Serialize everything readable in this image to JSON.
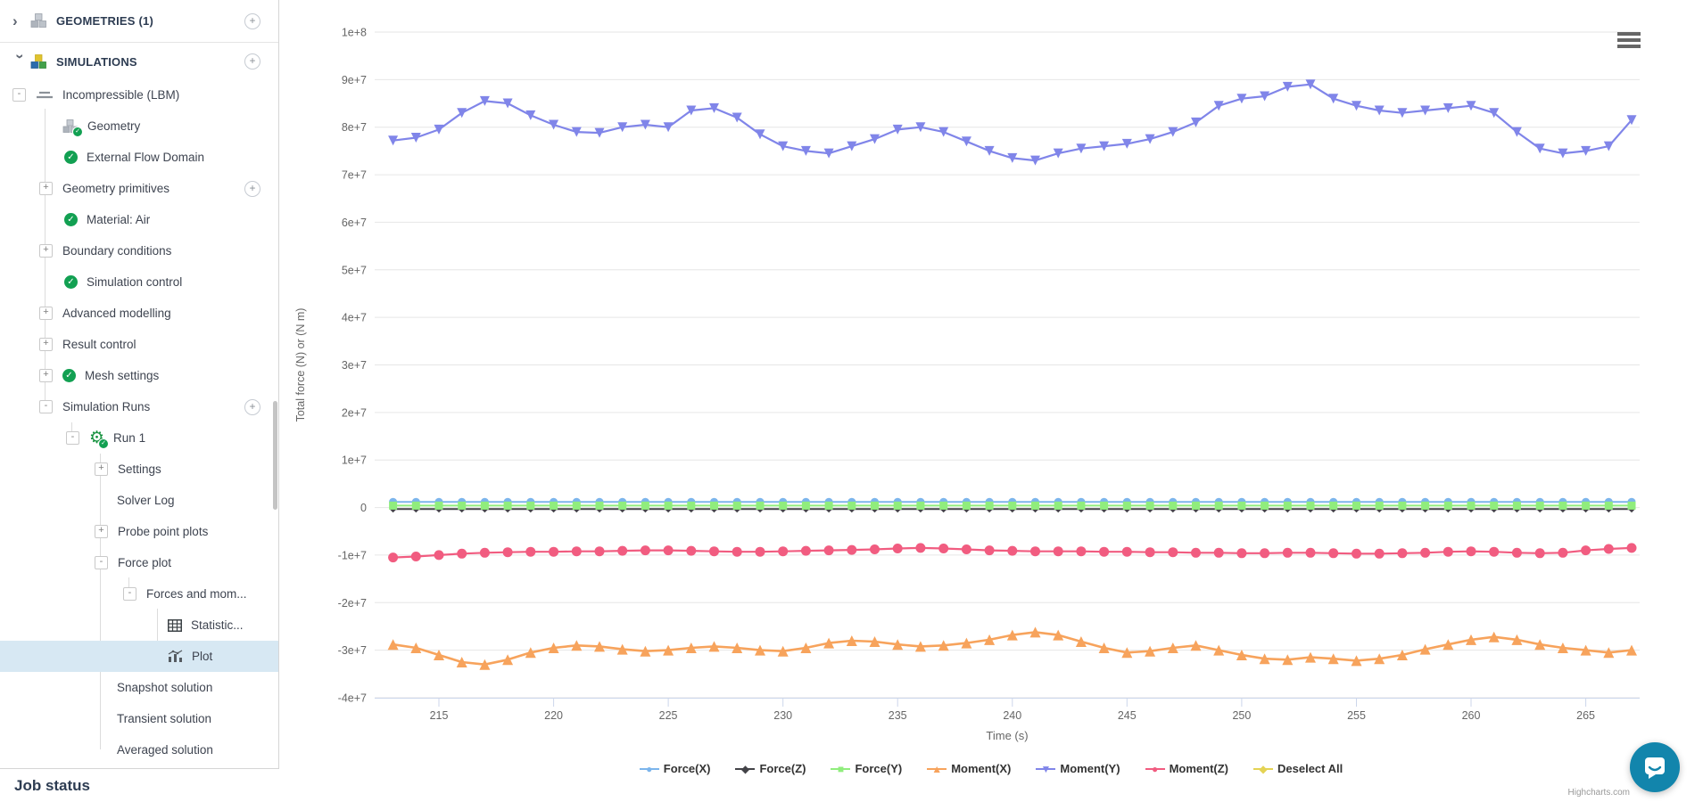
{
  "icons": {
    "plus_glyph": "+",
    "check_glyph": "✓",
    "chevron_glyph": "›",
    "gear_glyph": "⚙"
  },
  "sidebar": {
    "sections": {
      "geometries": {
        "label": "GEOMETRIES (1)"
      },
      "simulations": {
        "label": "SIMULATIONS"
      }
    },
    "items": [
      {
        "label": "Incompressible (LBM)",
        "exp": "-"
      },
      {
        "label": "Geometry"
      },
      {
        "label": "External Flow Domain"
      },
      {
        "label": "Geometry primitives",
        "exp": "+"
      },
      {
        "label": "Material: Air"
      },
      {
        "label": "Boundary conditions",
        "exp": "+"
      },
      {
        "label": "Simulation control"
      },
      {
        "label": "Advanced modelling",
        "exp": "+"
      },
      {
        "label": "Result control",
        "exp": "+"
      },
      {
        "label": "Mesh settings",
        "exp": "+"
      },
      {
        "label": "Simulation Runs",
        "exp": "-"
      },
      {
        "label": "Run 1",
        "exp": "-"
      },
      {
        "label": "Settings",
        "exp": "+"
      },
      {
        "label": "Solver Log"
      },
      {
        "label": "Probe point plots",
        "exp": "+"
      },
      {
        "label": "Force plot",
        "exp": "-"
      },
      {
        "label": "Forces and mom...",
        "exp": "-"
      },
      {
        "label": "Statistic..."
      },
      {
        "label": "Plot"
      },
      {
        "label": "Snapshot solution"
      },
      {
        "label": "Transient solution"
      },
      {
        "label": "Averaged solution"
      }
    ],
    "job_status_label": "Job status"
  },
  "chart_data": {
    "type": "line",
    "title": "",
    "xlabel": "Time (s)",
    "ylabel": "Total force (N) or (N m)",
    "grid": "horizontal",
    "legend_position": "bottom",
    "xlim": [
      212.2,
      267.35
    ],
    "ylim": [
      -40000000.0,
      100000000.0
    ],
    "x_ticks": [
      215,
      220,
      225,
      230,
      235,
      240,
      245,
      250,
      255,
      260,
      265
    ],
    "y_ticks": {
      "values": [
        100000000.0,
        90000000.0,
        80000000.0,
        70000000.0,
        60000000.0,
        50000000.0,
        40000000.0,
        30000000.0,
        20000000.0,
        10000000.0,
        0,
        -10000000.0,
        -20000000.0,
        -30000000.0,
        -40000000.0
      ],
      "labels": [
        "1e+8",
        "9e+7",
        "8e+7",
        "7e+7",
        "6e+7",
        "5e+7",
        "4e+7",
        "3e+7",
        "2e+7",
        "1e+7",
        "0",
        "-1e+7",
        "-2e+7",
        "-3e+7",
        "-4e+7"
      ]
    },
    "x": [
      213,
      214,
      215,
      216,
      217,
      218,
      219,
      220,
      221,
      222,
      223,
      224,
      225,
      226,
      227,
      228,
      229,
      230,
      231,
      232,
      233,
      234,
      235,
      236,
      237,
      238,
      239,
      240,
      241,
      242,
      243,
      244,
      245,
      246,
      247,
      248,
      249,
      250,
      251,
      252,
      253,
      254,
      255,
      256,
      257,
      258,
      259,
      260,
      261,
      262,
      263,
      264,
      265,
      266,
      267
    ],
    "series": [
      {
        "name": "Moment(Y)",
        "color": "#8085e9",
        "marker": "triangle-down",
        "radius": 5.5,
        "lw": 2.2,
        "values": [
          77200000.0,
          77800000.0,
          79500000.0,
          83000000.0,
          85500000.0,
          85000000.0,
          82500000.0,
          80500000.0,
          79000000.0,
          78800000.0,
          80000000.0,
          80500000.0,
          80000000.0,
          83500000.0,
          84000000.0,
          82000000.0,
          78500000.0,
          76000000.0,
          75000000.0,
          74500000.0,
          76000000.0,
          77500000.0,
          79500000.0,
          80000000.0,
          79000000.0,
          77000000.0,
          75000000.0,
          73500000.0,
          73000000.0,
          74500000.0,
          75500000.0,
          76000000.0,
          76500000.0,
          77500000.0,
          79000000.0,
          81000000.0,
          84500000.0,
          86000000.0,
          86500000.0,
          88500000.0,
          89000000.0,
          86000000.0,
          84500000.0,
          83500000.0,
          83000000.0,
          83500000.0,
          84000000.0,
          84500000.0,
          83000000.0,
          79000000.0,
          75500000.0,
          74500000.0,
          75000000.0,
          76000000.0,
          81500000.0
        ]
      },
      {
        "name": "Moment(X)",
        "color": "#f7a35c",
        "marker": "triangle",
        "radius": 6,
        "lw": 2.6,
        "values": [
          -28800000.0,
          -29500000.0,
          -31000000.0,
          -32500000.0,
          -33000000.0,
          -32000000.0,
          -30500000.0,
          -29500000.0,
          -29000000.0,
          -29200000.0,
          -29800000.0,
          -30200000.0,
          -30000000.0,
          -29500000.0,
          -29200000.0,
          -29500000.0,
          -30000000.0,
          -30200000.0,
          -29500000.0,
          -28500000.0,
          -28000000.0,
          -28200000.0,
          -28800000.0,
          -29200000.0,
          -29000000.0,
          -28500000.0,
          -27800000.0,
          -26800000.0,
          -26200000.0,
          -26800000.0,
          -28200000.0,
          -29500000.0,
          -30500000.0,
          -30200000.0,
          -29500000.0,
          -29000000.0,
          -30000000.0,
          -31000000.0,
          -31800000.0,
          -32000000.0,
          -31500000.0,
          -31800000.0,
          -32200000.0,
          -31800000.0,
          -31000000.0,
          -29800000.0,
          -28800000.0,
          -27800000.0,
          -27200000.0,
          -27800000.0,
          -28800000.0,
          -29500000.0,
          -30000000.0,
          -30500000.0,
          -30000000.0
        ]
      },
      {
        "name": "Moment(Z)",
        "color": "#f15c80",
        "marker": "circle",
        "radius": 5.5,
        "lw": 2.2,
        "values": [
          -10500000.0,
          -10300000.0,
          -10000000.0,
          -9700000.0,
          -9500000.0,
          -9400000.0,
          -9300000.0,
          -9300000.0,
          -9200000.0,
          -9200000.0,
          -9100000.0,
          -9000000.0,
          -9000000.0,
          -9100000.0,
          -9200000.0,
          -9300000.0,
          -9300000.0,
          -9200000.0,
          -9100000.0,
          -9000000.0,
          -8900000.0,
          -8800000.0,
          -8600000.0,
          -8500000.0,
          -8600000.0,
          -8800000.0,
          -9000000.0,
          -9100000.0,
          -9200000.0,
          -9200000.0,
          -9200000.0,
          -9300000.0,
          -9300000.0,
          -9400000.0,
          -9400000.0,
          -9500000.0,
          -9500000.0,
          -9600000.0,
          -9600000.0,
          -9500000.0,
          -9500000.0,
          -9600000.0,
          -9700000.0,
          -9700000.0,
          -9600000.0,
          -9500000.0,
          -9300000.0,
          -9200000.0,
          -9300000.0,
          -9500000.0,
          -9600000.0,
          -9500000.0,
          -9000000.0,
          -8700000.0,
          -8500000.0
        ]
      },
      {
        "name": "Force(X)",
        "color": "#7cb5ec",
        "marker": "circle",
        "radius": 4.5,
        "lw": 2,
        "values_constant": 1200000.0
      },
      {
        "name": "Force(Z)",
        "color": "#434348",
        "marker": "diamond",
        "radius": 4,
        "lw": 2,
        "values_constant": -300000.0
      },
      {
        "name": "Force(Y)",
        "color": "#90ed7d",
        "marker": "square",
        "radius": 4.5,
        "lw": 2,
        "values_constant": 400000.0
      }
    ],
    "legend": [
      {
        "name": "Force(X)",
        "color": "#7cb5ec",
        "glyph": "●"
      },
      {
        "name": "Force(Z)",
        "color": "#434348",
        "glyph": "◆"
      },
      {
        "name": "Force(Y)",
        "color": "#90ed7d",
        "glyph": "■"
      },
      {
        "name": "Moment(X)",
        "color": "#f7a35c",
        "glyph": "▲"
      },
      {
        "name": "Moment(Y)",
        "color": "#8085e9",
        "glyph": "▼"
      },
      {
        "name": "Moment(Z)",
        "color": "#f15c80",
        "glyph": "●"
      },
      {
        "name": "Deselect All",
        "color": "#e4d354",
        "glyph": "◆"
      }
    ],
    "credit": "Highcharts.com"
  },
  "colors": {
    "selected_row": "#d7e8f3",
    "check_green": "#12a052",
    "grid_line": "#e6e6e6",
    "axis_line": "#ccd6eb",
    "tick_text": "#666666",
    "chat_bubble": "#1285ac"
  }
}
